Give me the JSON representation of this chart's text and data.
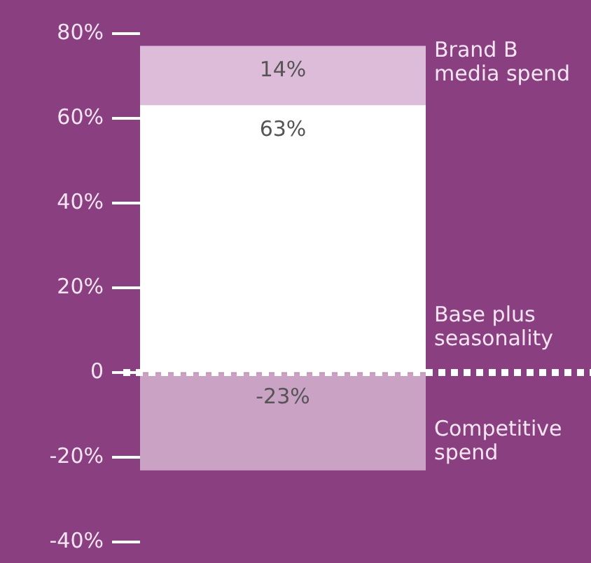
{
  "chart_data": {
    "type": "bar",
    "stacked": true,
    "categories": [
      null
    ],
    "series": [
      {
        "name": "Competitive spend",
        "color": "#c9a2c4",
        "values": [
          -23
        ],
        "value_labels": [
          "-23%"
        ]
      },
      {
        "name": "Base plus seasonality",
        "color": "#ffffff",
        "values": [
          63
        ],
        "value_labels": [
          "63%"
        ]
      },
      {
        "name": "Brand B media spend",
        "color": "#dcbcd8",
        "values": [
          14
        ],
        "value_labels": [
          "14%"
        ]
      }
    ],
    "ylim": [
      -40,
      80
    ],
    "yticks": [
      {
        "value": 80,
        "label": "80%"
      },
      {
        "value": 60,
        "label": "60%"
      },
      {
        "value": 40,
        "label": "40%"
      },
      {
        "value": 20,
        "label": "20%"
      },
      0,
      {
        "value": -20,
        "label": "-20%"
      },
      {
        "value": -40,
        "label": "-40%"
      }
    ],
    "ref_lines": [
      {
        "axis": "y",
        "value": 0,
        "color": "#ffffff",
        "line_style": "dotted"
      }
    ],
    "grid": false,
    "legend": false
  }
}
